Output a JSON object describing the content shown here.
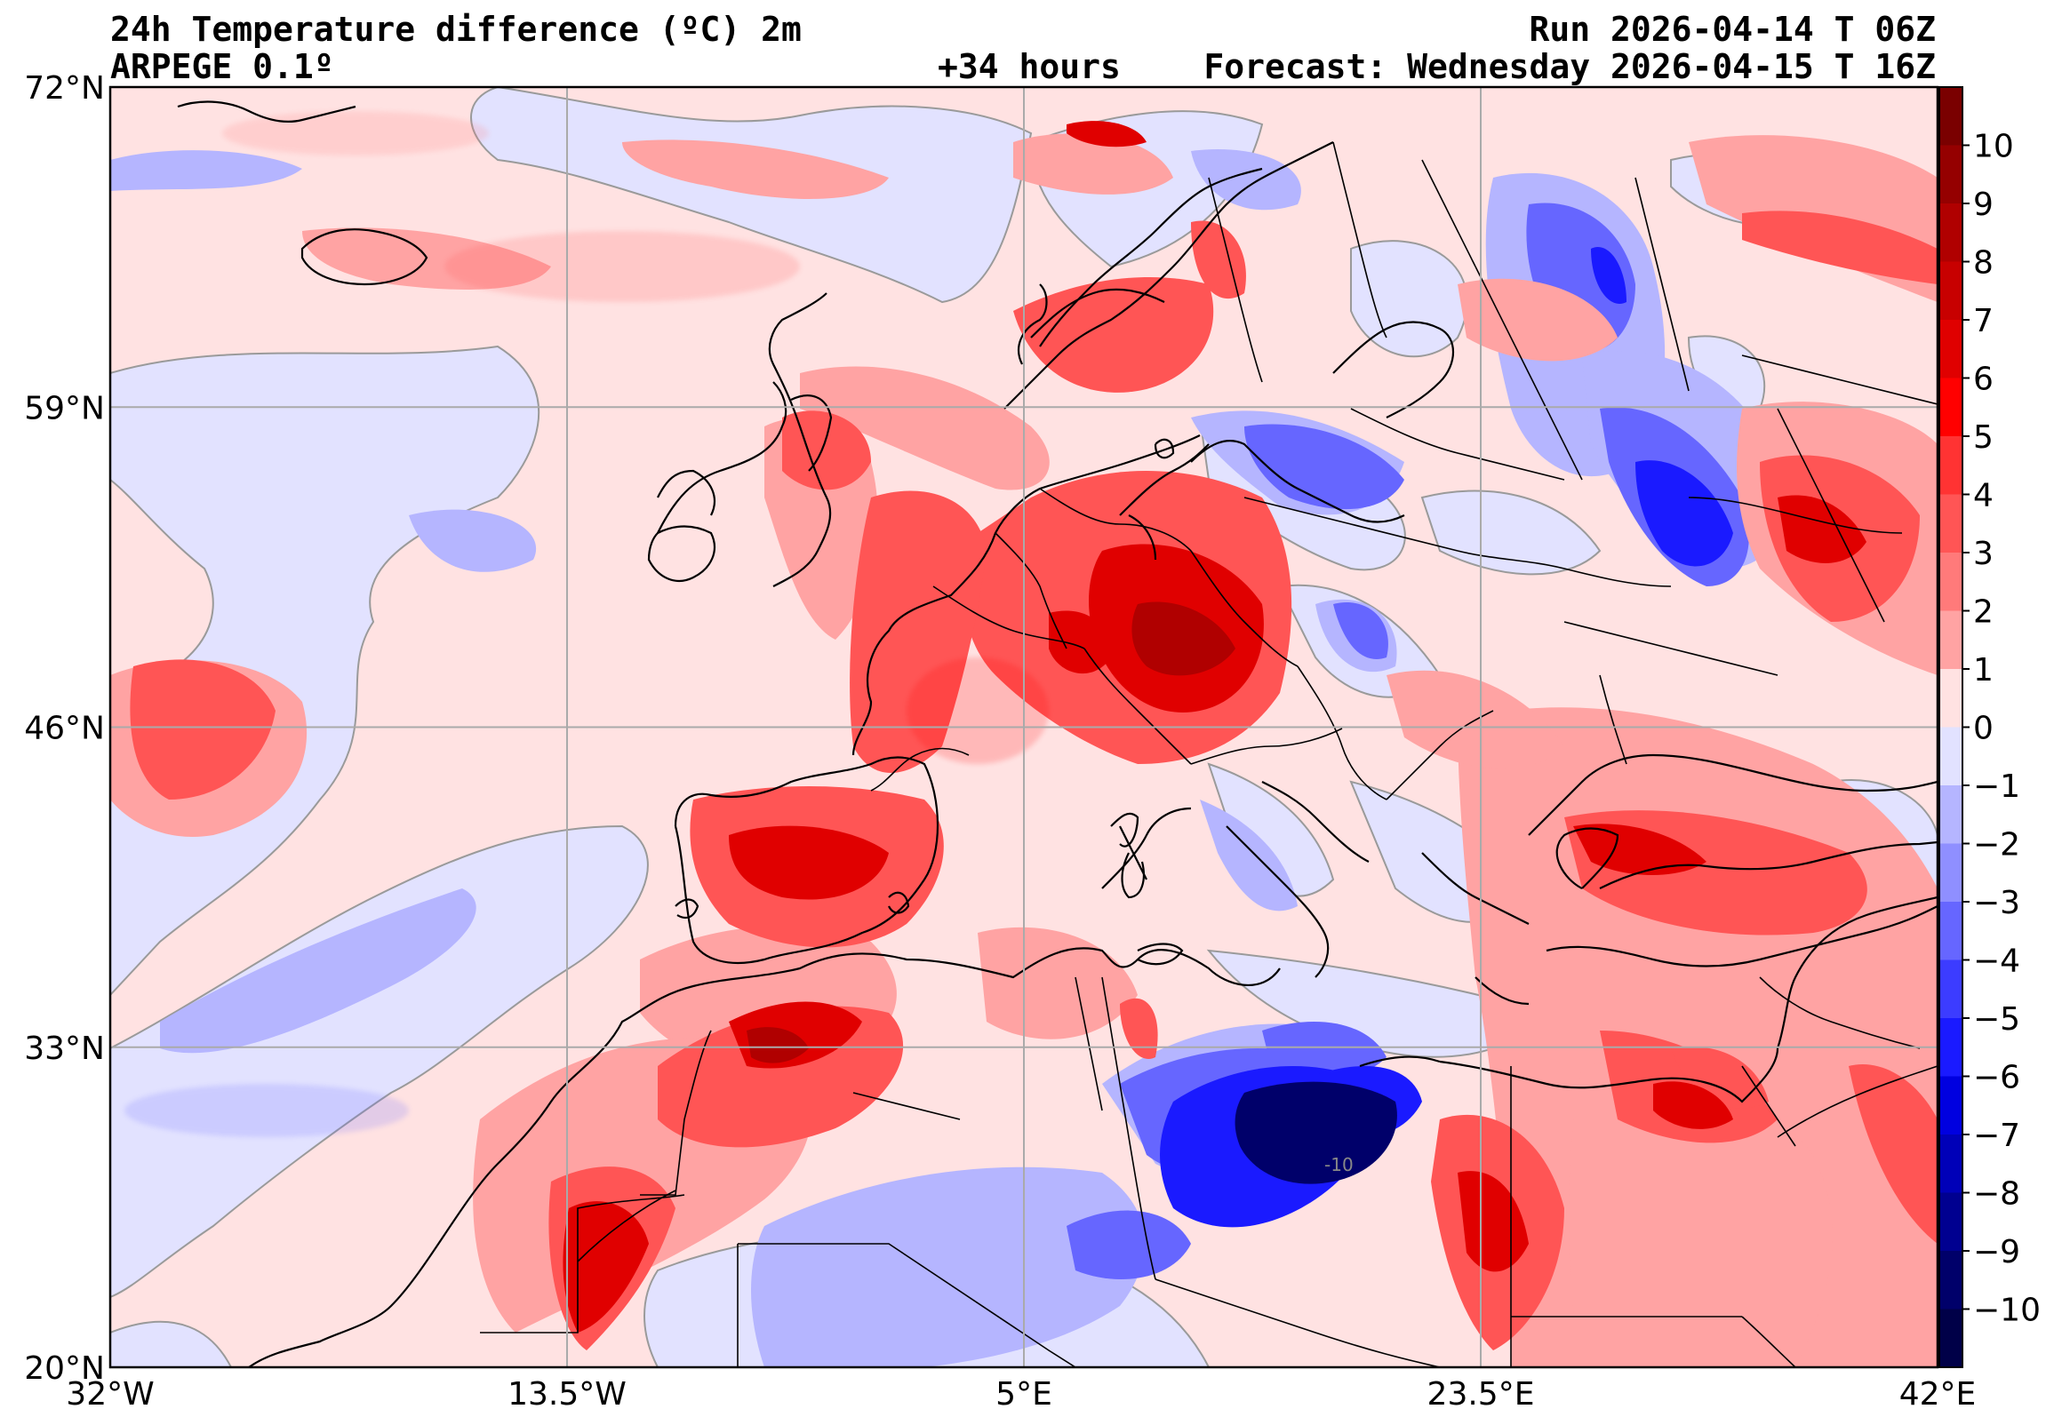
{
  "header": {
    "title": "24h Temperature difference (ºC) 2m",
    "model": "ARPEGE 0.1º",
    "lead": "+34 hours",
    "run": "Run 2026-04-14 T 06Z",
    "forecast": "Forecast: Wednesday 2026-04-15 T 16Z"
  },
  "map": {
    "lon_range": [
      -32,
      42
    ],
    "lat_range": [
      20,
      72
    ],
    "lat_ticks": [
      {
        "value": 72,
        "label": "72°N"
      },
      {
        "value": 59,
        "label": "59°N"
      },
      {
        "value": 46,
        "label": "46°N"
      },
      {
        "value": 33,
        "label": "33°N"
      },
      {
        "value": 20,
        "label": "20°N"
      }
    ],
    "lon_ticks": [
      {
        "value": -32,
        "label": "32°W"
      },
      {
        "value": -13.5,
        "label": "13.5°W"
      },
      {
        "value": 5,
        "label": "5°E"
      },
      {
        "value": 23.5,
        "label": "23.5°E"
      },
      {
        "value": 42,
        "label": "42°E"
      }
    ],
    "contour_label": "-10"
  },
  "colorbar": {
    "min": -11,
    "max": 11,
    "label_values": [
      10,
      9,
      8,
      7,
      6,
      5,
      4,
      3,
      2,
      1,
      0,
      -1,
      -2,
      -3,
      -4,
      -5,
      -6,
      -7,
      -8,
      -9,
      -10
    ],
    "labels": [
      "10",
      "9",
      "8",
      "7",
      "6",
      "5",
      "4",
      "3",
      "2",
      "1",
      "0",
      "−1",
      "−2",
      "−3",
      "−4",
      "−5",
      "−6",
      "−7",
      "−8",
      "−9",
      "−10"
    ],
    "colors_top_to_bottom": [
      "#7a0000",
      "#950000",
      "#b00000",
      "#c80000",
      "#e00000",
      "#ff0000",
      "#ff3333",
      "#ff5555",
      "#ff7a7a",
      "#ffa3a3",
      "#ffe2e2",
      "#e2e2ff",
      "#b5b5ff",
      "#8f8fff",
      "#6666ff",
      "#3c3cff",
      "#1a1aff",
      "#0000e0",
      "#0000b8",
      "#000090",
      "#00006a",
      "#000048"
    ]
  }
}
